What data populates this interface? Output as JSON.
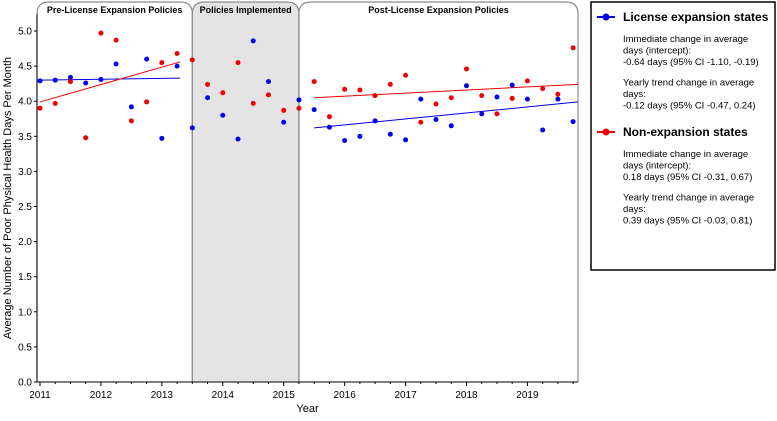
{
  "chart_data": {
    "type": "scatter",
    "ylabel": "Average Number of Poor Physical Health Days Per Month",
    "xlabel": "Year",
    "xlim": [
      2011,
      2019.83
    ],
    "ylim": [
      0,
      5.2
    ],
    "x_ticks": [
      2011,
      2012,
      2013,
      2014,
      2015,
      2016,
      2017,
      2018,
      2019
    ],
    "y_ticks": [
      0.0,
      0.5,
      1.0,
      1.5,
      2.0,
      2.5,
      3.0,
      3.5,
      4.0,
      4.5,
      5.0
    ],
    "periods": [
      {
        "title": "Pre-License Expansion Policies",
        "start": 2011,
        "end": 2013.5,
        "shaded": false
      },
      {
        "title": "Policies Implemented",
        "start": 2013.5,
        "end": 2015.25,
        "shaded": true
      },
      {
        "title": "Post-License Expansion Policies",
        "start": 2015.25,
        "end": 2019.83,
        "shaded": false
      }
    ],
    "series": [
      {
        "name": "License expansion states",
        "color": "#0000ee",
        "x": [
          2011.0,
          2011.25,
          2011.5,
          2011.75,
          2012.0,
          2012.25,
          2012.5,
          2012.75,
          2013.0,
          2013.25,
          2013.5,
          2013.75,
          2014.0,
          2014.25,
          2014.5,
          2014.75,
          2015.0,
          2015.25,
          2015.5,
          2015.75,
          2016.0,
          2016.25,
          2016.5,
          2016.75,
          2017.0,
          2017.25,
          2017.5,
          2017.75,
          2018.0,
          2018.25,
          2018.5,
          2018.75,
          2019.0,
          2019.25,
          2019.5,
          2019.75
        ],
        "y": [
          4.29,
          4.3,
          4.34,
          4.26,
          4.31,
          4.53,
          3.92,
          4.6,
          3.47,
          4.5,
          3.62,
          4.05,
          3.8,
          3.46,
          4.86,
          4.28,
          3.7,
          4.02,
          3.88,
          3.63,
          3.44,
          3.5,
          3.72,
          3.53,
          3.45,
          4.03,
          3.74,
          3.65,
          4.22,
          3.82,
          4.06,
          4.23,
          4.03,
          3.59,
          4.03,
          3.71
        ],
        "trend_segments": [
          {
            "x": [
              2011.0,
              2013.3
            ],
            "y": [
              4.3,
              4.33
            ]
          },
          {
            "x": [
              2015.5,
              2019.83
            ],
            "y": [
              3.62,
              3.99
            ]
          }
        ]
      },
      {
        "name": "Non-expansion states",
        "color": "#ee0000",
        "x": [
          2011.0,
          2011.25,
          2011.5,
          2011.75,
          2012.0,
          2012.25,
          2012.5,
          2012.75,
          2013.0,
          2013.25,
          2013.5,
          2013.75,
          2014.0,
          2014.25,
          2014.5,
          2014.75,
          2015.0,
          2015.25,
          2015.5,
          2015.75,
          2016.0,
          2016.25,
          2016.5,
          2016.75,
          2017.0,
          2017.25,
          2017.5,
          2017.75,
          2018.0,
          2018.25,
          2018.5,
          2018.75,
          2019.0,
          2019.25,
          2019.5,
          2019.75
        ],
        "y": [
          3.9,
          3.97,
          4.28,
          3.48,
          4.97,
          4.87,
          3.72,
          3.99,
          4.55,
          4.68,
          4.59,
          4.24,
          4.12,
          4.55,
          3.97,
          4.09,
          3.87,
          3.9,
          4.28,
          3.78,
          4.17,
          4.16,
          4.08,
          4.24,
          4.37,
          3.7,
          3.96,
          4.05,
          4.46,
          4.08,
          3.82,
          4.04,
          4.29,
          4.18,
          4.1,
          4.76
        ],
        "trend_segments": [
          {
            "x": [
              2011.0,
              2013.3
            ],
            "y": [
              3.99,
              4.56
            ]
          },
          {
            "x": [
              2015.5,
              2019.83
            ],
            "y": [
              4.05,
              4.24
            ]
          }
        ]
      }
    ],
    "legend": {
      "placement": "right",
      "groups": [
        {
          "name": "License expansion states",
          "color": "#0000ee",
          "lines": [
            "Immediate change in average",
            "days (intercept):",
            "-0.64 days (95% CI -1.10, -0.19)",
            "",
            "Yearly trend change in average",
            "days:",
            "-0.12 days (95% CI -0.47, 0.24)"
          ]
        },
        {
          "name": "Non-expansion states",
          "color": "#ee0000",
          "lines": [
            "Immediate change in average",
            "days (intercept):",
            "0.18 days (95% CI -0.31, 0.67)",
            "",
            "Yearly trend change in average",
            "days:",
            "0.39 days (95% CI -0.03, 0.81)"
          ]
        }
      ]
    }
  }
}
